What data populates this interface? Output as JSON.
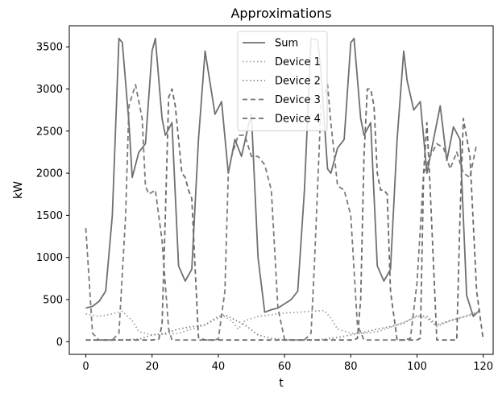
{
  "chart_data": {
    "type": "line",
    "title": "Approximations",
    "xlabel": "t",
    "ylabel": "kW",
    "xlim": [
      -5,
      123
    ],
    "ylim": [
      -150,
      3750
    ],
    "xticks": [
      0,
      20,
      40,
      60,
      80,
      100,
      120
    ],
    "yticks": [
      0,
      500,
      1000,
      1500,
      2000,
      2500,
      3000,
      3500
    ],
    "grid": false,
    "legend_position": "top-center",
    "series": [
      {
        "name": "Sum",
        "color": "#6f6f6f",
        "dash": "solid",
        "x": [
          0,
          2,
          4,
          6,
          8,
          10,
          11,
          13,
          14,
          16,
          18,
          20,
          21,
          23,
          24,
          26,
          28,
          30,
          32,
          34,
          36,
          37,
          39,
          41,
          43,
          45,
          47,
          49,
          50,
          52,
          54,
          56,
          58,
          60,
          62,
          64,
          66,
          68,
          70,
          71,
          73,
          74,
          76,
          78,
          80,
          81,
          83,
          84,
          86,
          88,
          90,
          92,
          94,
          96,
          97,
          99,
          101,
          103,
          105,
          107,
          109,
          111,
          113,
          115,
          117,
          119
        ],
        "y": [
          400,
          420,
          480,
          600,
          1500,
          3600,
          3550,
          2600,
          1950,
          2250,
          2350,
          3450,
          3600,
          2650,
          2450,
          2600,
          900,
          720,
          860,
          2400,
          3450,
          3200,
          2700,
          2850,
          2000,
          2400,
          2200,
          2550,
          2700,
          1000,
          350,
          380,
          400,
          450,
          500,
          600,
          1800,
          3600,
          3580,
          3200,
          2050,
          2000,
          2300,
          2400,
          3550,
          3600,
          2650,
          2450,
          2600,
          900,
          720,
          860,
          2400,
          3450,
          3100,
          2750,
          2850,
          2000,
          2400,
          2800,
          2150,
          2550,
          2400,
          550,
          300,
          380
        ]
      },
      {
        "name": "Device 1",
        "color": "#a0a0a0",
        "dash": "dotted",
        "x": [
          0,
          4,
          8,
          11,
          14,
          16,
          20,
          24,
          28,
          32,
          36,
          40,
          42,
          44,
          46,
          48,
          52,
          56,
          60,
          64,
          68,
          72,
          74,
          76,
          80,
          84,
          88,
          92,
          96,
          100,
          103,
          106,
          110,
          114,
          119
        ],
        "y": [
          330,
          300,
          330,
          360,
          250,
          120,
          80,
          90,
          100,
          150,
          200,
          280,
          300,
          250,
          150,
          250,
          300,
          320,
          340,
          350,
          360,
          370,
          280,
          150,
          100,
          100,
          120,
          170,
          230,
          300,
          280,
          180,
          250,
          300,
          360
        ]
      },
      {
        "name": "Device 2",
        "color": "#858585",
        "dash": "dotted",
        "x": [
          0,
          4,
          8,
          12,
          16,
          20,
          24,
          28,
          32,
          36,
          40,
          42,
          44,
          48,
          52,
          56,
          60,
          64,
          68,
          72,
          76,
          80,
          84,
          88,
          92,
          96,
          100,
          103,
          106,
          110,
          114,
          119
        ],
        "y": [
          20,
          20,
          20,
          25,
          30,
          80,
          100,
          150,
          180,
          200,
          300,
          320,
          280,
          200,
          80,
          40,
          20,
          20,
          20,
          30,
          50,
          80,
          110,
          150,
          180,
          220,
          310,
          300,
          200,
          250,
          290,
          350
        ]
      },
      {
        "name": "Device 3",
        "color": "#7a7a7a",
        "dash": "dashed",
        "x": [
          0,
          2,
          4,
          8,
          10,
          12,
          13,
          15,
          17,
          18,
          19,
          21,
          23,
          25,
          26,
          28,
          30,
          32,
          34,
          36,
          38,
          40,
          42,
          43,
          44,
          46,
          48,
          50,
          52,
          54,
          56,
          58,
          60,
          62,
          64,
          66,
          68,
          69,
          71,
          73,
          74,
          76,
          78,
          80,
          82,
          84,
          86,
          88,
          90,
          92,
          94,
          96,
          98,
          100,
          102,
          104,
          106,
          108,
          110,
          112,
          114,
          116,
          118
        ],
        "y": [
          1350,
          100,
          20,
          20,
          100,
          1500,
          2800,
          3050,
          2650,
          1850,
          1750,
          1800,
          1200,
          150,
          20,
          20,
          20,
          20,
          20,
          20,
          20,
          30,
          600,
          2000,
          2200,
          2450,
          2450,
          2200,
          2200,
          2100,
          1800,
          400,
          30,
          20,
          20,
          20,
          100,
          900,
          2800,
          3050,
          2600,
          1850,
          1800,
          1500,
          200,
          20,
          20,
          20,
          20,
          20,
          20,
          20,
          40,
          700,
          2000,
          2200,
          2350,
          2300,
          2050,
          2250,
          2000,
          1950,
          2350
        ]
      },
      {
        "name": "Device 4",
        "color": "#6a6a6a",
        "dash": "dashed",
        "x": [
          0,
          4,
          8,
          12,
          14,
          16,
          18,
          20,
          22,
          23,
          24,
          25,
          26,
          27,
          28,
          29,
          30,
          31,
          32,
          34,
          36,
          38,
          40,
          44,
          48,
          52,
          56,
          60,
          64,
          68,
          70,
          72,
          74,
          76,
          78,
          80,
          81,
          82,
          83,
          84,
          85,
          86,
          87,
          88,
          89,
          90,
          91,
          92,
          94,
          96,
          98,
          100,
          101,
          102,
          103,
          104,
          106,
          108,
          110,
          112,
          113,
          114,
          116,
          118,
          120
        ],
        "y": [
          20,
          20,
          20,
          20,
          20,
          20,
          20,
          20,
          30,
          200,
          1500,
          2900,
          3000,
          2800,
          2400,
          2000,
          1950,
          1800,
          1700,
          50,
          20,
          20,
          20,
          20,
          20,
          20,
          20,
          20,
          20,
          20,
          20,
          20,
          20,
          20,
          20,
          20,
          20,
          40,
          500,
          2200,
          3000,
          3000,
          2800,
          2000,
          1800,
          1800,
          1750,
          600,
          20,
          20,
          20,
          20,
          40,
          2000,
          2600,
          1800,
          20,
          20,
          20,
          20,
          1500,
          2650,
          2200,
          600,
          20
        ]
      }
    ]
  }
}
